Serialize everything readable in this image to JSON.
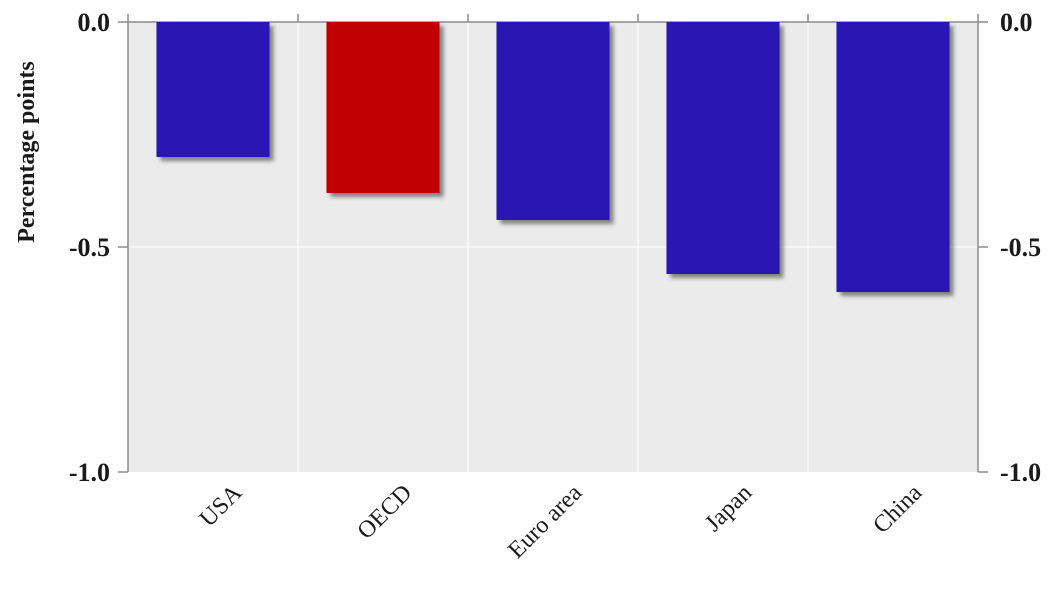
{
  "chart_data": {
    "type": "bar",
    "categories": [
      "USA",
      "OECD",
      "Euro area",
      "Japan",
      "China"
    ],
    "values": [
      -0.3,
      -0.38,
      -0.44,
      -0.56,
      -0.6
    ],
    "bar_colors": [
      "#2b17b3",
      "#c00000",
      "#2b17b3",
      "#2b17b3",
      "#2b17b3"
    ],
    "ylabel": "Percentage points",
    "ylim": [
      -1.0,
      0.0
    ],
    "yticks": [
      0.0,
      -0.5,
      -1.0
    ],
    "ytick_labels": [
      "0.0",
      "-0.5",
      "-1.0"
    ],
    "right_axis_ticks": true,
    "grid": true,
    "plot_background": "#ebebeb"
  }
}
